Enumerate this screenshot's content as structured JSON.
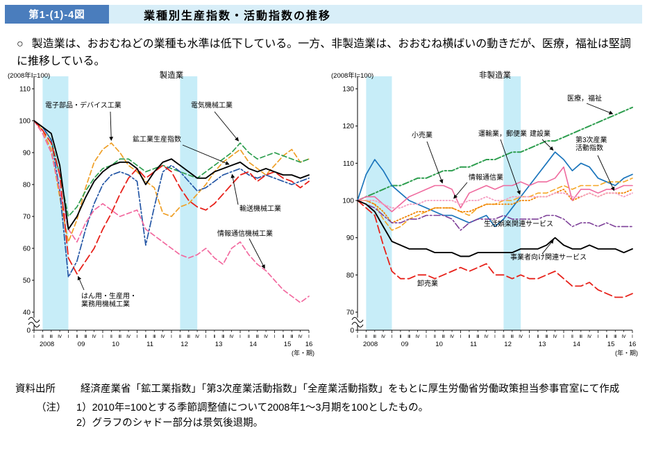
{
  "header": {
    "figure_label": "第1-(1)-4図",
    "title": "業種別生産指数・活動指数の推移"
  },
  "summary": {
    "bullet": "○",
    "text": "製造業は、おおむねどの業種も水準は低下している。一方、非製造業は、おおむね横ばいの動きだが、医療，福祉は堅調に推移している。"
  },
  "chart_data": [
    {
      "type": "line",
      "title": "製造業",
      "unit_note": "(2008年Ⅰ=100)",
      "x_axis_note": "(年・期)",
      "years": [
        "2008",
        "09",
        "10",
        "11",
        "12",
        "13",
        "14",
        "15",
        "16"
      ],
      "quarter_labels": [
        "Ⅰ",
        "Ⅱ",
        "Ⅲ",
        "Ⅳ"
      ],
      "ylim": [
        40,
        110
      ],
      "yticks": [
        0,
        40,
        50,
        60,
        70,
        80,
        90,
        100,
        110
      ],
      "axis_break": true,
      "band_color": "#c7edf8",
      "recession_bands": [
        [
          1,
          4
        ],
        [
          17,
          19
        ]
      ],
      "series": [
        {
          "name": "電子部品・デバイス工業",
          "color": "#ef9f26",
          "style": "dash",
          "width": 1.7,
          "values": [
            100,
            97,
            91,
            76,
            62,
            69,
            79,
            87,
            91,
            93,
            90,
            86,
            84,
            81,
            79,
            71,
            70,
            73,
            74,
            77,
            80,
            84,
            87,
            89,
            91,
            87,
            85,
            83,
            86,
            89,
            91,
            87,
            88
          ]
        },
        {
          "name": "電気機械工業",
          "color": "#2e9e4f",
          "style": "dash",
          "width": 1.7,
          "values": [
            100,
            98,
            94,
            83,
            70,
            73,
            78,
            82,
            85,
            86,
            88,
            88,
            86,
            84,
            85,
            86,
            85,
            84,
            83,
            82,
            84,
            86,
            88,
            90,
            93,
            90,
            88,
            89,
            90,
            89,
            88,
            87,
            88
          ]
        },
        {
          "name": "輸送機械工業",
          "color": "#2456a5",
          "style": "dashdot",
          "width": 1.7,
          "values": [
            100,
            98,
            94,
            78,
            51,
            56,
            66,
            74,
            80,
            83,
            84,
            83,
            81,
            61,
            73,
            84,
            86,
            84,
            81,
            78,
            79,
            81,
            83,
            84,
            85,
            83,
            82,
            83,
            82,
            81,
            80,
            81,
            82
          ]
        },
        {
          "name": "情報通信機械工業",
          "color": "#f2699f",
          "style": "dash",
          "width": 1.7,
          "values": [
            100,
            96,
            90,
            78,
            66,
            62,
            68,
            72,
            74,
            72,
            70,
            71,
            72,
            66,
            64,
            62,
            60,
            58,
            57,
            58,
            60,
            57,
            55,
            60,
            62,
            58,
            55,
            53,
            50,
            47,
            45,
            43,
            45
          ]
        },
        {
          "name": "はん用・生産用・業務用機械工業",
          "color": "#e7211a",
          "style": "longdash",
          "width": 1.8,
          "values": [
            100,
            97,
            93,
            83,
            57,
            52,
            56,
            60,
            66,
            71,
            77,
            82,
            85,
            82,
            84,
            86,
            84,
            79,
            75,
            73,
            72,
            74,
            77,
            80,
            83,
            84,
            81,
            83,
            84,
            82,
            81,
            79,
            81
          ]
        },
        {
          "name": "鉱工業生産指数",
          "color": "#000000",
          "style": "solid",
          "width": 1.9,
          "values": [
            100,
            98,
            96,
            86,
            66,
            70,
            76,
            81,
            84,
            86,
            87,
            87,
            85,
            80,
            84,
            87,
            88,
            86,
            84,
            82,
            82,
            84,
            85,
            86,
            87,
            85,
            84,
            85,
            84,
            83,
            83,
            82,
            83
          ]
        }
      ]
    },
    {
      "type": "line",
      "title": "非製造業",
      "unit_note": "(2008年Ⅰ=100)",
      "x_axis_note": "(年・期)",
      "years": [
        "2008",
        "09",
        "10",
        "11",
        "12",
        "13",
        "14",
        "15",
        "16"
      ],
      "quarter_labels": [
        "Ⅰ",
        "Ⅱ",
        "Ⅲ",
        "Ⅳ"
      ],
      "ylim": [
        70,
        130
      ],
      "yticks": [
        0,
        70,
        80,
        90,
        100,
        110,
        120,
        130
      ],
      "axis_break": true,
      "band_color": "#c7edf8",
      "recession_bands": [
        [
          1,
          4
        ],
        [
          17,
          19
        ]
      ],
      "series": [
        {
          "name": "医療，福祉",
          "color": "#2e9e4f",
          "style": "dashdot",
          "width": 2,
          "values": [
            100,
            101,
            102,
            103,
            104,
            104,
            105,
            106,
            106,
            107,
            108,
            108,
            109,
            109,
            110,
            111,
            111,
            112,
            113,
            113,
            114,
            115,
            116,
            116,
            117,
            118,
            119,
            120,
            121,
            122,
            123,
            124,
            125
          ]
        },
        {
          "name": "建設業",
          "color": "#1b75bc",
          "style": "solid",
          "width": 1.7,
          "values": [
            100,
            107,
            111,
            108,
            104,
            102,
            100,
            99,
            98,
            97,
            96,
            96,
            95,
            94,
            95,
            96,
            93,
            95,
            98,
            101,
            104,
            107,
            110,
            113,
            111,
            108,
            110,
            109,
            106,
            105,
            104,
            106,
            107
          ]
        },
        {
          "name": "運輸業，郵便業",
          "color": "#f5a623",
          "style": "dash",
          "width": 1.6,
          "values": [
            100,
            100,
            99,
            95,
            92,
            93,
            95,
            96,
            97,
            98,
            98,
            98,
            97,
            96,
            98,
            99,
            99,
            100,
            100,
            101,
            101,
            102,
            102,
            103,
            104,
            103,
            104,
            104,
            104,
            105,
            105,
            105,
            106
          ]
        },
        {
          "name": "第3次産業活動指数",
          "color": "#f08300",
          "style": "dot",
          "width": 1.8,
          "values": [
            100,
            100,
            99,
            97,
            94,
            95,
            96,
            97,
            97,
            98,
            98,
            98,
            97,
            97,
            98,
            99,
            99,
            99,
            99,
            100,
            100,
            101,
            101,
            102,
            103,
            100,
            101,
            102,
            101,
            102,
            102,
            102,
            103
          ]
        },
        {
          "name": "小売業",
          "color": "#ef6a9e",
          "style": "solid",
          "width": 1.6,
          "values": [
            100,
            101,
            101,
            99,
            97,
            99,
            101,
            102,
            103,
            104,
            104,
            103,
            98,
            102,
            103,
            104,
            103,
            104,
            104,
            105,
            104,
            105,
            105,
            106,
            109,
            100,
            103,
            103,
            102,
            103,
            103,
            104,
            104
          ]
        },
        {
          "name": "情報通信業",
          "color": "#f59cc0",
          "style": "dot",
          "width": 1.8,
          "values": [
            100,
            100,
            100,
            99,
            98,
            98,
            99,
            99,
            100,
            100,
            100,
            100,
            99,
            100,
            100,
            101,
            100,
            100,
            101,
            101,
            101,
            101,
            101,
            102,
            102,
            101,
            101,
            102,
            101,
            102,
            102,
            101,
            102
          ]
        },
        {
          "name": "生活娯楽関連サービス",
          "color": "#7d3f98",
          "style": "dashdot",
          "width": 1.6,
          "values": [
            100,
            99,
            98,
            96,
            94,
            94,
            95,
            95,
            96,
            96,
            96,
            95,
            92,
            94,
            95,
            95,
            95,
            96,
            95,
            95,
            95,
            95,
            96,
            96,
            95,
            93,
            94,
            94,
            93,
            94,
            93,
            93,
            93
          ]
        },
        {
          "name": "卸売業",
          "color": "#e7211a",
          "style": "longdash",
          "width": 1.8,
          "values": [
            100,
            98,
            96,
            88,
            81,
            79,
            79,
            80,
            80,
            79,
            80,
            81,
            82,
            81,
            82,
            83,
            80,
            80,
            79,
            80,
            79,
            79,
            80,
            81,
            79,
            77,
            77,
            78,
            76,
            75,
            74,
            74,
            75
          ]
        },
        {
          "name": "事業者向け関連サービス",
          "color": "#000000",
          "style": "solid",
          "width": 1.9,
          "values": [
            100,
            99,
            97,
            93,
            89,
            88,
            87,
            87,
            87,
            86,
            86,
            86,
            85,
            85,
            86,
            86,
            86,
            86,
            86,
            87,
            87,
            87,
            88,
            90,
            88,
            87,
            87,
            88,
            87,
            87,
            87,
            86,
            87
          ]
        }
      ]
    }
  ],
  "footer": {
    "source_label": "資料出所",
    "source_text": "経済産業省「鉱工業指数」「第3次産業活動指数」「全産業活動指数」をもとに厚生労働省労働政策担当参事官室にて作成",
    "note_label": "（注）",
    "notes": [
      "1）2010年=100とする季節調整値について2008年1〜3月期を100としたもの。",
      "2）グラフのシャドー部分は景気後退期。"
    ]
  }
}
